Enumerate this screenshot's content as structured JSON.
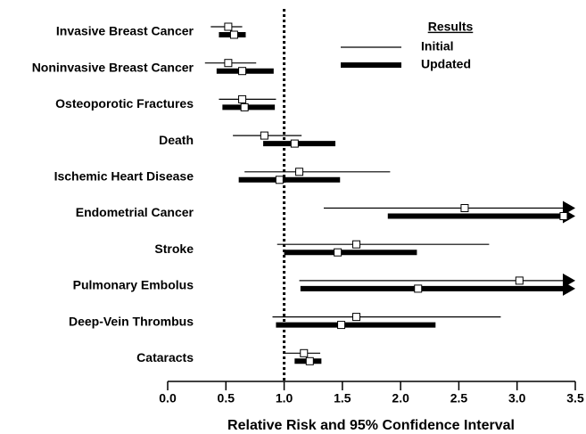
{
  "chart_data": {
    "type": "forest",
    "xlabel": "Relative Risk and 95% Confidence Interval",
    "legend_title": "Results",
    "categories": [
      "Invasive Breast Cancer",
      "Noninvasive Breast Cancer",
      "Osteoporotic Fractures",
      "Death",
      "Ischemic Heart Disease",
      "Endometrial Cancer",
      "Stroke",
      "Pulmonary Embolus",
      "Deep-Vein Thrombus",
      "Cataracts"
    ],
    "series": [
      {
        "name": "Initial",
        "color": "#000000",
        "values": [
          0.52,
          0.52,
          0.64,
          0.83,
          1.13,
          2.55,
          1.62,
          3.02,
          1.62,
          1.17
        ],
        "lower": [
          0.37,
          0.32,
          0.44,
          0.56,
          0.66,
          1.34,
          0.94,
          1.13,
          0.9,
          1.0
        ],
        "upper": [
          0.64,
          0.76,
          0.93,
          1.15,
          1.91,
          null,
          2.76,
          null,
          2.86,
          1.31
        ]
      },
      {
        "name": "Updated",
        "color": "#000000",
        "values": [
          0.57,
          0.64,
          0.66,
          1.09,
          0.96,
          3.4,
          1.46,
          2.15,
          1.49,
          1.22
        ],
        "lower": [
          0.44,
          0.42,
          0.47,
          0.82,
          0.61,
          1.89,
          1.0,
          1.14,
          0.93,
          1.09
        ],
        "upper": [
          0.67,
          0.91,
          0.92,
          1.44,
          1.48,
          null,
          2.14,
          null,
          2.3,
          1.32
        ]
      }
    ],
    "reference_line": 1,
    "xlim": [
      0,
      3.5
    ],
    "xticks": [
      {
        "value": 0,
        "label": "0.0"
      },
      0.5,
      {
        "value": 1,
        "label": "1.0"
      },
      1.5,
      {
        "value": 2,
        "label": "2.0"
      },
      2.5,
      {
        "value": 3,
        "label": "3.0"
      },
      3.5
    ]
  }
}
